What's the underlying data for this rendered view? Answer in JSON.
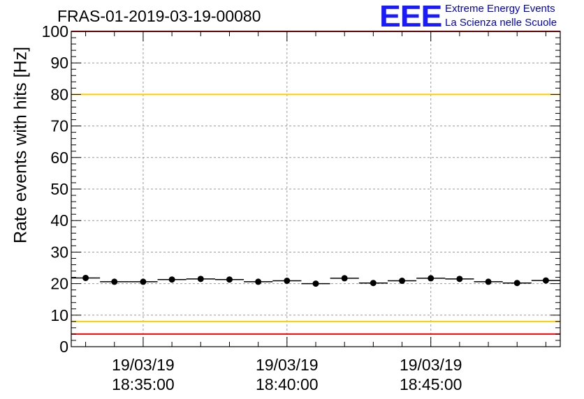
{
  "header": {
    "title": "FRAS-01-2019-03-19-00080",
    "logo_text": "EEE",
    "logo_line1": "Extreme Energy Events",
    "logo_line2": "La Scienza nelle Scuole"
  },
  "chart_data": {
    "type": "scatter",
    "title": "FRAS-01-2019-03-19-00080",
    "ylabel": "Rate events with hits [Hz]",
    "xlabel": "",
    "ylim": [
      0,
      100
    ],
    "yticks": [
      0,
      10,
      20,
      30,
      40,
      50,
      60,
      70,
      80,
      90,
      100
    ],
    "x_range": [
      "18:32:30",
      "18:49:30"
    ],
    "xticks": [
      {
        "time": "18:35:00",
        "date": "19/03/19"
      },
      {
        "time": "18:40:00",
        "date": "19/03/19"
      },
      {
        "time": "18:45:00",
        "date": "19/03/19"
      }
    ],
    "grid": true,
    "series": [
      {
        "marker": "circle",
        "color": "#000000",
        "x": [
          "18:33:00",
          "18:34:00",
          "18:35:00",
          "18:36:00",
          "18:37:00",
          "18:38:00",
          "18:39:00",
          "18:40:00",
          "18:41:00",
          "18:42:00",
          "18:43:00",
          "18:44:00",
          "18:45:00",
          "18:46:00",
          "18:47:00",
          "18:48:00",
          "18:49:00"
        ],
        "y": [
          21.8,
          20.6,
          20.6,
          21.3,
          21.5,
          21.3,
          20.6,
          20.9,
          20.0,
          21.7,
          20.2,
          20.9,
          21.7,
          21.5,
          20.6,
          20.2,
          21.0
        ]
      }
    ],
    "reference_lines": [
      {
        "y": 100,
        "color": "#ff0000"
      },
      {
        "y": 80,
        "color": "#ffcc00"
      },
      {
        "y": 8,
        "color": "#ffcc00"
      },
      {
        "y": 4,
        "color": "#ff0000"
      }
    ]
  }
}
